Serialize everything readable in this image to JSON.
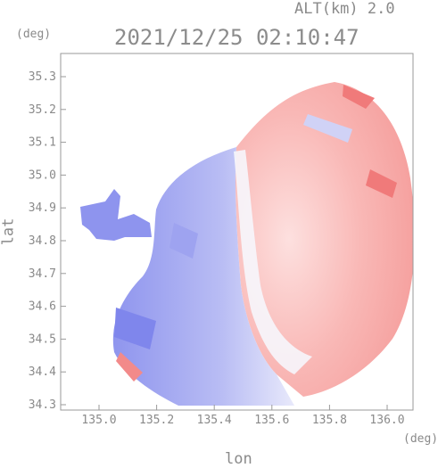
{
  "header": {
    "altitude": "ALT(km) 2.0",
    "datetime": "2021/12/25 02:10:47"
  },
  "axes": {
    "y_unit": "(deg)",
    "x_unit": "(deg)",
    "y_label": "lat",
    "x_label": "lon",
    "y_ticks": [
      "35.3",
      "35.2",
      "35.1",
      "35.0",
      "34.9",
      "34.8",
      "34.7",
      "34.6",
      "34.5",
      "34.4",
      "34.3"
    ],
    "x_ticks": [
      "135.0",
      "135.2",
      "135.4",
      "135.6",
      "135.8",
      "136.0"
    ]
  },
  "colors": {
    "approaching": "#8a90f0",
    "receding": "#f5a4a4",
    "near_zero": "#f4f4fb",
    "frame": "#9a9a9a"
  }
}
